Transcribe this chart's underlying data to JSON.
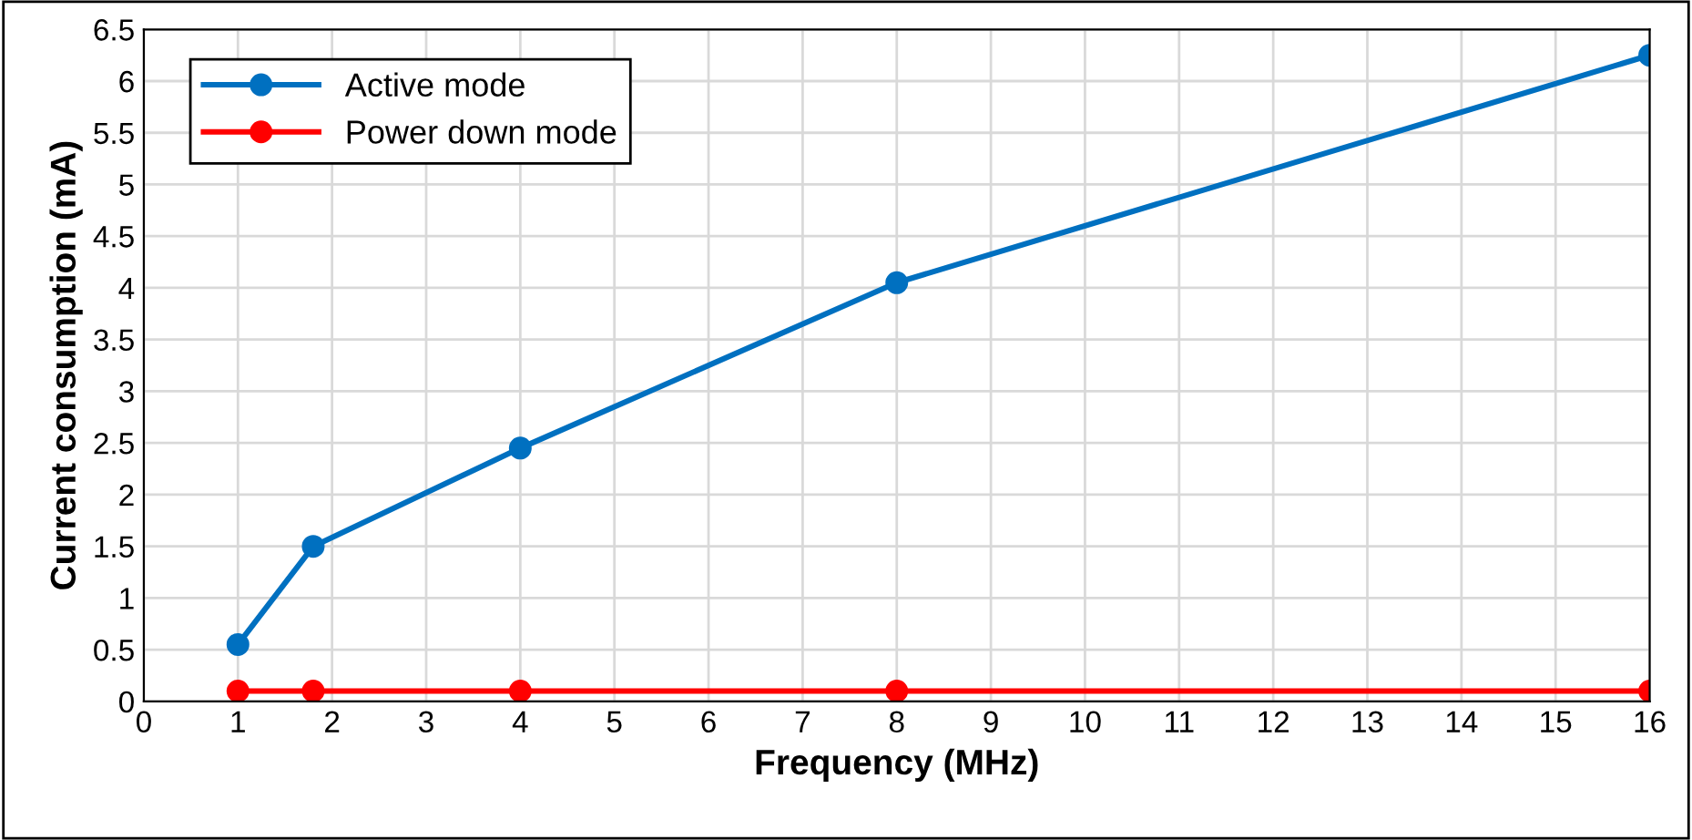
{
  "chart_data": {
    "type": "line",
    "xlabel": "Frequency (MHz)",
    "ylabel": "Current consumption (mA)",
    "x": [
      1,
      1.8,
      4,
      8,
      16
    ],
    "series": [
      {
        "name": "Active mode",
        "color": "#0070c0",
        "values": [
          0.55,
          1.5,
          2.45,
          4.05,
          6.25
        ]
      },
      {
        "name": "Power down mode",
        "color": "#ff0000",
        "values": [
          0.1,
          0.1,
          0.1,
          0.1,
          0.1
        ]
      }
    ],
    "xlim": [
      0,
      16
    ],
    "xticks": [
      0,
      1,
      2,
      3,
      4,
      5,
      6,
      7,
      8,
      9,
      10,
      11,
      12,
      13,
      14,
      15,
      16
    ],
    "ylim": [
      0,
      6.5
    ],
    "yticks": [
      0,
      0.5,
      1,
      1.5,
      2,
      2.5,
      3,
      3.5,
      4,
      4.5,
      5,
      5.5,
      6,
      6.5
    ],
    "grid": true,
    "legend": "top left",
    "marker": "circle",
    "line_style": "solid"
  }
}
